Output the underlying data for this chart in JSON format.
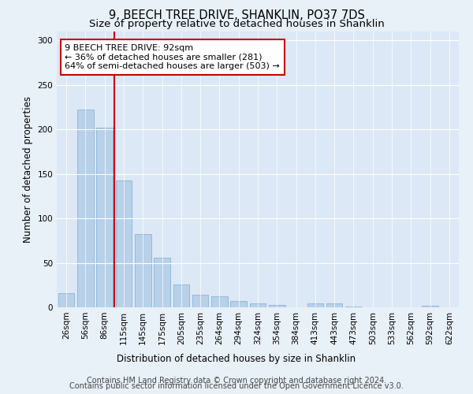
{
  "title": "9, BEECH TREE DRIVE, SHANKLIN, PO37 7DS",
  "subtitle": "Size of property relative to detached houses in Shanklin",
  "xlabel": "Distribution of detached houses by size in Shanklin",
  "ylabel": "Number of detached properties",
  "bar_labels": [
    "26sqm",
    "56sqm",
    "86sqm",
    "115sqm",
    "145sqm",
    "175sqm",
    "205sqm",
    "235sqm",
    "264sqm",
    "294sqm",
    "324sqm",
    "354sqm",
    "384sqm",
    "413sqm",
    "443sqm",
    "473sqm",
    "503sqm",
    "533sqm",
    "562sqm",
    "592sqm",
    "622sqm"
  ],
  "bar_values": [
    16,
    222,
    202,
    143,
    82,
    56,
    26,
    14,
    12,
    7,
    4,
    3,
    0,
    4,
    4,
    1,
    0,
    0,
    0,
    2,
    0
  ],
  "bar_color": "#b8d0e8",
  "bar_edge_color": "#7aafd4",
  "vline_x": 2.5,
  "vline_color": "#cc0000",
  "annotation_text": "9 BEECH TREE DRIVE: 92sqm\n← 36% of detached houses are smaller (281)\n64% of semi-detached houses are larger (503) →",
  "annotation_box_color": "#ffffff",
  "annotation_box_edge_color": "#cc0000",
  "ylim": [
    0,
    310
  ],
  "yticks": [
    0,
    50,
    100,
    150,
    200,
    250,
    300
  ],
  "footer_line1": "Contains HM Land Registry data © Crown copyright and database right 2024.",
  "footer_line2": "Contains public sector information licensed under the Open Government Licence v3.0.",
  "background_color": "#e8f0f8",
  "plot_background": "#dce8f5",
  "title_fontsize": 10.5,
  "subtitle_fontsize": 9.5,
  "axis_label_fontsize": 8.5,
  "tick_fontsize": 7.5,
  "footer_fontsize": 7
}
